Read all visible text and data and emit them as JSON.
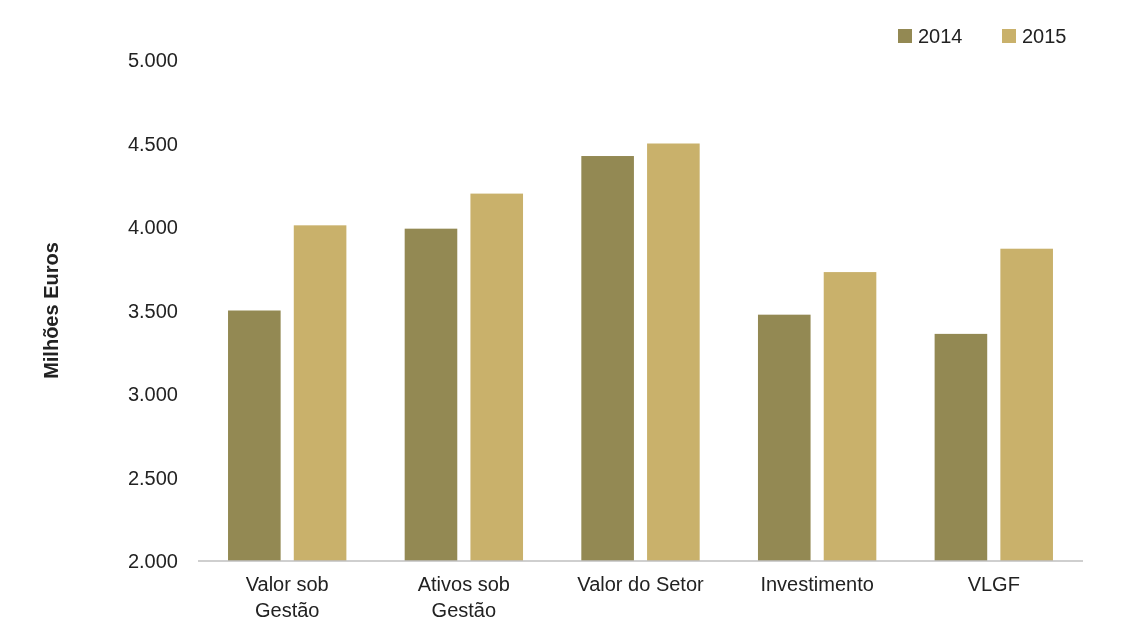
{
  "chart_data": {
    "type": "bar",
    "ylabel": "Milhões Euros",
    "categories": [
      "Valor sob\nGestão",
      "Ativos sob\nGestão",
      "Valor do Setor",
      "Investimento",
      "VLGF"
    ],
    "series": [
      {
        "name": "2014",
        "color": "#938953",
        "values": [
          3500,
          3990,
          4425,
          3475,
          3360
        ]
      },
      {
        "name": "2015",
        "color": "#c9b16b",
        "values": [
          4010,
          4200,
          4500,
          3730,
          3870
        ]
      }
    ],
    "ylim": [
      2000,
      5000
    ],
    "yticks": [
      {
        "value": 2000,
        "label": "2.000"
      },
      {
        "value": 2500,
        "label": "2.500"
      },
      {
        "value": 3000,
        "label": "3.000"
      },
      {
        "value": 3500,
        "label": "3.500"
      },
      {
        "value": 4000,
        "label": "4.000"
      },
      {
        "value": 4500,
        "label": "4.500"
      },
      {
        "value": 5000,
        "label": "5.000"
      }
    ],
    "grid": false,
    "legend": "top right"
  }
}
